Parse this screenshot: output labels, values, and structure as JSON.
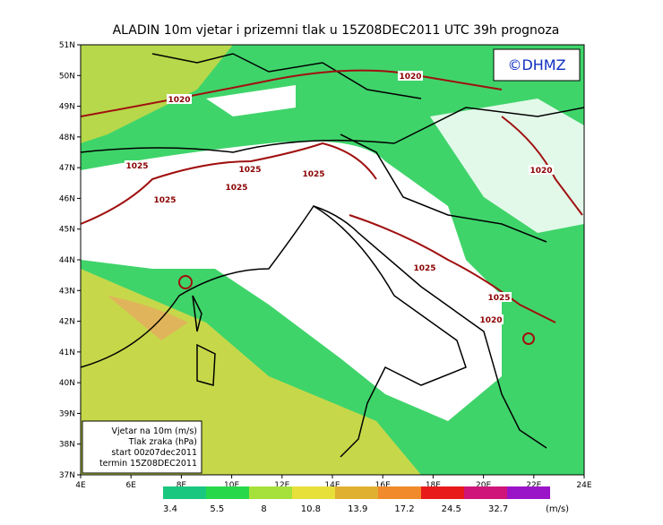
{
  "title": "ALADIN  10m  vjetar  i  prizemni  tlak  u  15Z08DEC2011  UTC  39h  prognoza",
  "copyright": "©DHMZ",
  "lat_labels": [
    "51N",
    "50N",
    "49N",
    "48N",
    "47N",
    "46N",
    "45N",
    "44N",
    "43N",
    "42N",
    "41N",
    "40N",
    "39N",
    "38N",
    "37N"
  ],
  "lon_labels": [
    "4E",
    "6E",
    "8E",
    "10E",
    "12E",
    "14E",
    "16E",
    "18E",
    "20E",
    "22E",
    "24E"
  ],
  "legend_box": [
    "Vjetar na 10m (m/s)",
    "Tlak zraka (hPa)",
    "start 00z07dec2011",
    "termin 15Z08DEC2011"
  ],
  "isobar_labels": [
    "1020",
    "1020",
    "1025",
    "1025",
    "1025",
    "1025",
    "1025",
    "1020",
    "1025",
    "1025",
    "1020"
  ],
  "colorbar": {
    "labels": [
      "3.4",
      "5.5",
      "8",
      "10.8",
      "13.9",
      "17.2",
      "24.5",
      "32.7"
    ],
    "unit": "(m/s)",
    "colors": [
      "#19c77f",
      "#27d94a",
      "#a6e03a",
      "#e8e03a",
      "#e0b030",
      "#f08a2a",
      "#e81a1a",
      "#d0157a",
      "#9a15c8"
    ]
  }
}
